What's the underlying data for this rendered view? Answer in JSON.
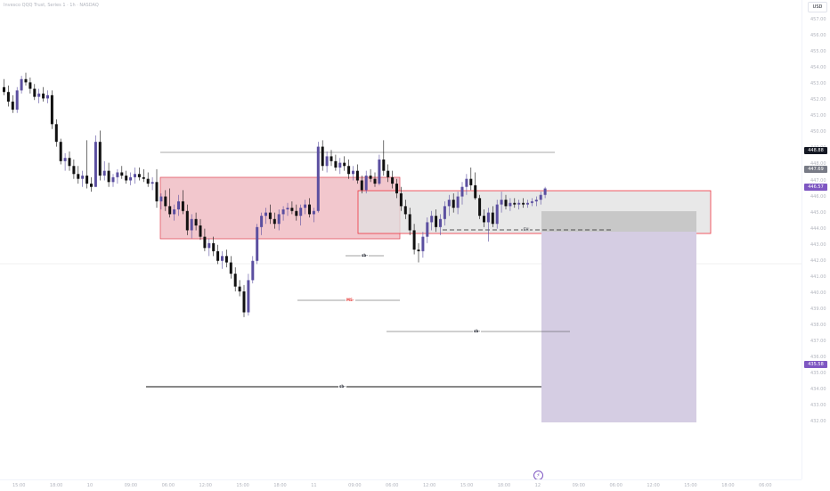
{
  "symbol_title": "Invesco QQQ Trust, Series 1 · 1h · NASDAQ",
  "currency": "USD",
  "price_axis": {
    "ticks": [
      "457.00",
      "456.00",
      "455.00",
      "454.00",
      "453.00",
      "452.00",
      "451.00",
      "450.00",
      "449.00",
      "448.00",
      "447.00",
      "446.00",
      "445.00",
      "444.00",
      "443.00",
      "442.00",
      "441.00",
      "440.00",
      "439.00",
      "438.00",
      "437.00",
      "436.00",
      "435.00",
      "434.00",
      "433.00",
      "432.00"
    ],
    "badges": [
      {
        "label": "448.88",
        "price": 448.88,
        "color": "#131722"
      },
      {
        "label": "447.69",
        "price": 447.69,
        "color": "#787b86"
      },
      {
        "label": "446.57",
        "price": 446.57,
        "color": "#7e57c2"
      },
      {
        "label": "435.58",
        "price": 435.58,
        "color": "#7e57c2"
      }
    ]
  },
  "time_axis": {
    "labels": [
      "15:00",
      "18:00",
      "10",
      "09:00",
      "06:00",
      "12:00",
      "15:00",
      "18:00",
      "11",
      "09:00",
      "06:00",
      "12:00",
      "15:00",
      "18:00",
      "12",
      "09:00",
      "06:00",
      "12:00",
      "15:00",
      "18:00",
      "06:00"
    ]
  },
  "drawings": {
    "zone_labels": [
      "sb-",
      "MS-",
      "sb-",
      "sb-"
    ],
    "eq_label": "EH"
  },
  "chart_data": {
    "type": "candlestick",
    "series": [
      {
        "name": "",
        "values": [
          [
            452.8,
            453.3,
            452.3,
            452.5
          ],
          [
            452.5,
            452.9,
            451.6,
            451.9
          ],
          [
            451.9,
            452.3,
            451.2,
            451.4
          ],
          [
            451.4,
            452.8,
            451.2,
            452.6
          ],
          [
            452.6,
            453.5,
            452.4,
            453.3
          ],
          [
            453.3,
            453.7,
            452.9,
            453.1
          ],
          [
            453.1,
            453.4,
            452.4,
            452.7
          ],
          [
            452.7,
            453.0,
            452.0,
            452.2
          ],
          [
            452.2,
            452.7,
            451.8,
            452.4
          ],
          [
            452.4,
            452.8,
            451.9,
            452.1
          ],
          [
            452.1,
            452.6,
            451.8,
            452.3
          ],
          [
            452.3,
            452.6,
            450.2,
            450.5
          ],
          [
            450.5,
            450.8,
            449.1,
            449.4
          ],
          [
            449.4,
            449.6,
            448.0,
            448.2
          ],
          [
            448.2,
            448.7,
            447.6,
            448.4
          ],
          [
            448.4,
            448.8,
            447.6,
            447.9
          ],
          [
            447.9,
            448.3,
            447.1,
            447.4
          ],
          [
            447.4,
            447.9,
            446.8,
            447.1
          ],
          [
            447.1,
            447.6,
            446.6,
            447.3
          ],
          [
            447.3,
            449.5,
            446.5,
            446.8
          ],
          [
            446.8,
            447.2,
            446.3,
            446.6
          ],
          [
            446.6,
            449.8,
            446.6,
            449.4
          ],
          [
            449.4,
            450.1,
            447.0,
            447.3
          ],
          [
            447.3,
            448.2,
            447.0,
            447.6
          ],
          [
            447.6,
            448.1,
            446.6,
            446.9
          ],
          [
            446.9,
            447.4,
            446.6,
            447.2
          ],
          [
            447.2,
            447.7,
            446.8,
            447.5
          ],
          [
            447.5,
            447.9,
            447.1,
            447.3
          ],
          [
            447.3,
            447.6,
            446.8,
            447.0
          ],
          [
            447.0,
            447.5,
            446.7,
            447.2
          ],
          [
            447.2,
            447.8,
            446.8,
            447.4
          ],
          [
            447.4,
            447.8,
            447.0,
            447.2
          ],
          [
            447.2,
            447.7,
            446.9,
            447.1
          ],
          [
            447.1,
            447.5,
            446.6,
            446.8
          ],
          [
            446.8,
            447.2,
            446.4,
            446.9
          ],
          [
            446.9,
            447.7,
            445.3,
            445.7
          ],
          [
            445.7,
            446.2,
            445.2,
            446.0
          ],
          [
            446.0,
            446.4,
            445.1,
            445.4
          ],
          [
            445.4,
            446.5,
            444.7,
            444.9
          ],
          [
            444.9,
            445.5,
            444.5,
            445.2
          ],
          [
            445.2,
            446.1,
            444.8,
            445.7
          ],
          [
            445.7,
            446.4,
            444.9,
            445.1
          ],
          [
            445.1,
            445.5,
            443.6,
            443.9
          ],
          [
            443.9,
            444.9,
            443.4,
            444.6
          ],
          [
            444.6,
            445.0,
            443.9,
            444.2
          ],
          [
            444.2,
            444.6,
            443.3,
            443.5
          ],
          [
            443.5,
            444.0,
            442.6,
            442.8
          ],
          [
            442.8,
            443.4,
            442.3,
            443.1
          ],
          [
            443.1,
            443.5,
            442.3,
            442.6
          ],
          [
            442.6,
            443.0,
            441.8,
            442.0
          ],
          [
            442.0,
            442.6,
            441.5,
            442.3
          ],
          [
            442.3,
            442.7,
            441.6,
            441.9
          ],
          [
            441.9,
            442.3,
            440.9,
            441.2
          ],
          [
            441.2,
            441.6,
            440.1,
            440.4
          ],
          [
            440.4,
            440.8,
            439.8,
            440.1
          ],
          [
            440.1,
            440.5,
            438.5,
            438.8
          ],
          [
            438.8,
            441.2,
            438.6,
            440.8
          ],
          [
            440.8,
            442.3,
            440.6,
            442.0
          ],
          [
            442.0,
            444.3,
            441.8,
            444.1
          ],
          [
            444.1,
            445.0,
            443.6,
            444.8
          ],
          [
            444.8,
            445.3,
            444.3,
            445.0
          ],
          [
            445.0,
            445.5,
            444.3,
            444.6
          ],
          [
            444.6,
            445.0,
            444.0,
            444.3
          ],
          [
            444.3,
            445.2,
            443.9,
            444.9
          ],
          [
            444.9,
            445.4,
            444.5,
            445.2
          ],
          [
            445.2,
            445.6,
            444.8,
            445.3
          ],
          [
            445.3,
            445.7,
            444.9,
            445.1
          ],
          [
            445.1,
            445.5,
            444.5,
            444.8
          ],
          [
            444.8,
            445.5,
            444.2,
            445.3
          ],
          [
            445.3,
            445.8,
            444.9,
            445.5
          ],
          [
            445.5,
            445.9,
            444.7,
            444.9
          ],
          [
            444.9,
            445.3,
            444.4,
            445.1
          ],
          [
            445.1,
            449.4,
            445.0,
            449.1
          ],
          [
            449.1,
            449.5,
            447.6,
            447.9
          ],
          [
            447.9,
            448.8,
            447.5,
            448.5
          ],
          [
            448.5,
            448.9,
            447.9,
            448.2
          ],
          [
            448.2,
            448.6,
            447.6,
            447.8
          ],
          [
            447.8,
            448.4,
            447.4,
            448.1
          ],
          [
            448.1,
            448.5,
            447.6,
            447.9
          ],
          [
            447.9,
            448.3,
            447.1,
            447.4
          ],
          [
            447.4,
            447.9,
            447.0,
            447.6
          ],
          [
            447.6,
            448.0,
            446.8,
            447.0
          ],
          [
            447.0,
            447.3,
            446.2,
            446.4
          ],
          [
            446.4,
            447.6,
            446.2,
            447.3
          ],
          [
            447.3,
            447.7,
            446.9,
            447.1
          ],
          [
            447.1,
            447.5,
            446.6,
            446.8
          ],
          [
            446.8,
            448.6,
            446.7,
            448.3
          ],
          [
            448.3,
            449.5,
            447.3,
            447.6
          ],
          [
            447.6,
            448.0,
            446.9,
            447.2
          ],
          [
            447.2,
            447.6,
            446.5,
            446.8
          ],
          [
            446.8,
            447.1,
            445.9,
            446.2
          ],
          [
            446.2,
            446.6,
            445.1,
            445.4
          ],
          [
            445.4,
            445.8,
            444.6,
            444.9
          ],
          [
            444.9,
            445.3,
            443.6,
            443.9
          ],
          [
            443.9,
            444.3,
            442.4,
            442.7
          ],
          [
            442.7,
            443.1,
            441.9,
            442.6
          ],
          [
            442.6,
            443.8,
            442.2,
            443.5
          ],
          [
            443.5,
            444.7,
            443.1,
            444.4
          ],
          [
            444.4,
            445.1,
            443.9,
            444.8
          ],
          [
            444.8,
            445.2,
            443.8,
            444.1
          ],
          [
            444.1,
            444.9,
            443.6,
            444.6
          ],
          [
            444.6,
            445.7,
            444.2,
            445.4
          ],
          [
            445.4,
            446.1,
            444.8,
            445.8
          ],
          [
            445.8,
            446.2,
            445.0,
            445.3
          ],
          [
            445.3,
            446.3,
            444.9,
            446.0
          ],
          [
            446.0,
            446.9,
            445.5,
            446.6
          ],
          [
            446.6,
            447.4,
            446.1,
            447.1
          ],
          [
            447.1,
            447.8,
            446.4,
            446.7
          ],
          [
            446.7,
            447.5,
            445.8,
            445.9
          ],
          [
            445.9,
            446.1,
            444.6,
            444.8
          ],
          [
            444.8,
            445.2,
            444.1,
            444.4
          ],
          [
            444.4,
            445.3,
            443.2,
            445.0
          ],
          [
            445.0,
            445.4,
            444.1,
            444.3
          ],
          [
            444.3,
            445.8,
            444.0,
            445.5
          ],
          [
            445.5,
            446.3,
            445.0,
            445.8
          ],
          [
            445.8,
            446.1,
            445.2,
            445.4
          ],
          [
            445.4,
            445.9,
            445.1,
            445.6
          ],
          [
            445.6,
            445.9,
            445.3,
            445.5
          ],
          [
            445.5,
            445.8,
            445.2,
            445.6
          ],
          [
            445.6,
            445.9,
            445.3,
            445.5
          ],
          [
            445.5,
            445.8,
            445.3,
            445.6
          ],
          [
            445.6,
            445.9,
            445.4,
            445.7
          ],
          [
            445.7,
            446.0,
            445.4,
            445.8
          ],
          [
            445.8,
            446.3,
            445.5,
            446.1
          ],
          [
            446.1,
            446.6,
            445.9,
            446.5
          ]
        ]
      }
    ],
    "ylim": [
      431.5,
      457.6
    ],
    "grid": false
  }
}
